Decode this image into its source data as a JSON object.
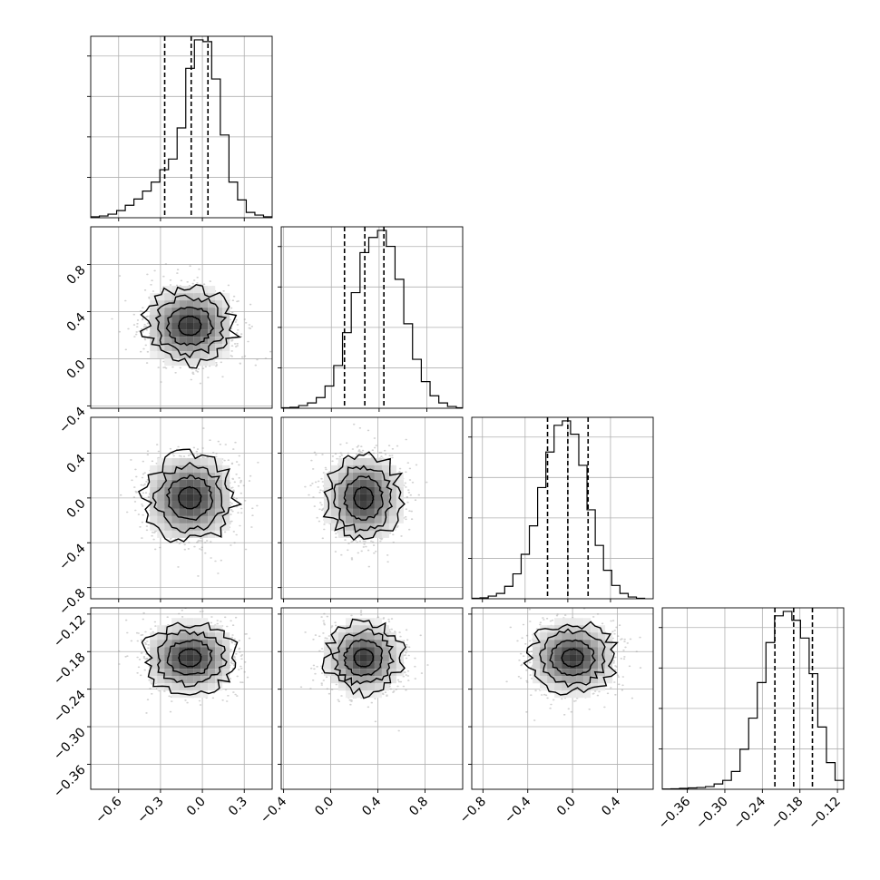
{
  "chart_data": {
    "type": "corner",
    "grid": true,
    "params": [
      {
        "mean": -0.09,
        "sd": 0.16,
        "hist_lim": [
          -0.8,
          0.5
        ],
        "range": [
          -0.8,
          0.5
        ],
        "quantiles": [
          -0.27,
          -0.08,
          0.04
        ]
      },
      {
        "mean": 0.28,
        "sd": 0.16,
        "hist_lim": [
          -0.42,
          1.1
        ],
        "range": [
          -0.42,
          1.12
        ],
        "quantiles": [
          0.11,
          0.28,
          0.44
        ]
      },
      {
        "mean": 0.0,
        "sd": 0.19,
        "hist_lim": [
          -0.9,
          0.8
        ],
        "range": [
          -0.9,
          0.72
        ],
        "quantiles": [
          -0.19,
          0.0,
          0.19
        ]
      },
      {
        "mean": -0.19,
        "sd": 0.028,
        "hist_lim": [
          -0.4,
          -0.11
        ],
        "range": [
          -0.4,
          -0.11
        ],
        "quantiles": [
          -0.22,
          -0.19,
          -0.16
        ]
      }
    ],
    "ticks": [
      {
        "values": [
          -0.6,
          -0.3,
          0.0,
          0.3
        ],
        "labels": [
          "−0.6",
          "−0.3",
          "0.0",
          "0.3"
        ]
      },
      {
        "values": [
          -0.4,
          0.0,
          0.4,
          0.8
        ],
        "labels": [
          "−0.4",
          "0.0",
          "0.4",
          "0.8"
        ]
      },
      {
        "values": [
          -0.8,
          -0.4,
          0.0,
          0.4
        ],
        "labels": [
          "−0.8",
          "−0.4",
          "0.0",
          "0.4"
        ]
      },
      {
        "values": [
          -0.36,
          -0.3,
          -0.24,
          -0.18,
          -0.12
        ],
        "labels": [
          "−0.36",
          "−0.30",
          "−0.24",
          "−0.18",
          "−0.12"
        ]
      }
    ],
    "hist": [
      [
        1,
        2,
        4,
        8,
        14,
        21,
        30,
        40,
        54,
        66,
        101,
        168,
        200,
        198,
        156,
        93,
        40,
        20,
        6,
        3,
        1
      ],
      [
        0.5,
        1,
        3,
        6,
        12,
        25,
        48,
        85,
        130,
        175,
        192,
        200,
        182,
        145,
        95,
        55,
        30,
        14,
        6,
        2,
        0.5
      ],
      [
        0.5,
        1,
        3,
        6,
        14,
        28,
        50,
        82,
        125,
        165,
        195,
        200,
        185,
        150,
        100,
        60,
        32,
        15,
        6,
        2,
        0.5
      ],
      [
        0.3,
        0.5,
        1,
        1.5,
        2,
        3,
        6,
        10,
        20,
        45,
        80,
        120,
        165,
        195,
        200,
        190,
        170,
        130,
        70,
        30,
        10
      ]
    ],
    "pairs": [
      {
        "x": 0,
        "y": 1,
        "rho": 0.0
      },
      {
        "x": 0,
        "y": 2,
        "rho": 0.0
      },
      {
        "x": 1,
        "y": 2,
        "rho": 0.0
      },
      {
        "x": 0,
        "y": 3,
        "rho": 0.0
      },
      {
        "x": 1,
        "y": 3,
        "rho": 0.0
      },
      {
        "x": 2,
        "y": 3,
        "rho": 0.0
      }
    ]
  }
}
